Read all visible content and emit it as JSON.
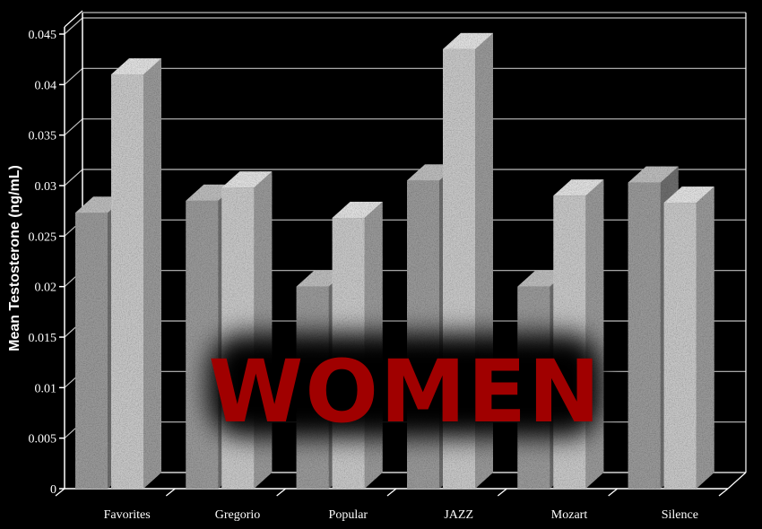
{
  "colors": {
    "background": "#000000",
    "grid": "#bdbdbd",
    "overlay_text": "#a00000"
  },
  "overlay": {
    "text": "WOMEN"
  },
  "chart_data": {
    "type": "bar",
    "title": "",
    "xlabel": "",
    "ylabel": "Mean Testosterone (ng/mL)",
    "ylim": [
      0,
      0.045
    ],
    "yticks": [
      "0",
      "0.005",
      "0.01",
      "0.015",
      "0.02",
      "0.025",
      "0.03",
      "0.035",
      "0.04",
      "0.045"
    ],
    "grid": true,
    "legend": "none",
    "categories": [
      "Favorites",
      "Gregorio",
      "Popular",
      "JAZZ",
      "Mozart",
      "Silence"
    ],
    "series": [
      {
        "values": [
          0.0273,
          0.0285,
          0.02,
          0.0305,
          0.02,
          0.0303
        ]
      },
      {
        "values": [
          0.041,
          0.0298,
          0.0268,
          0.0435,
          0.029,
          0.0283
        ]
      }
    ]
  }
}
